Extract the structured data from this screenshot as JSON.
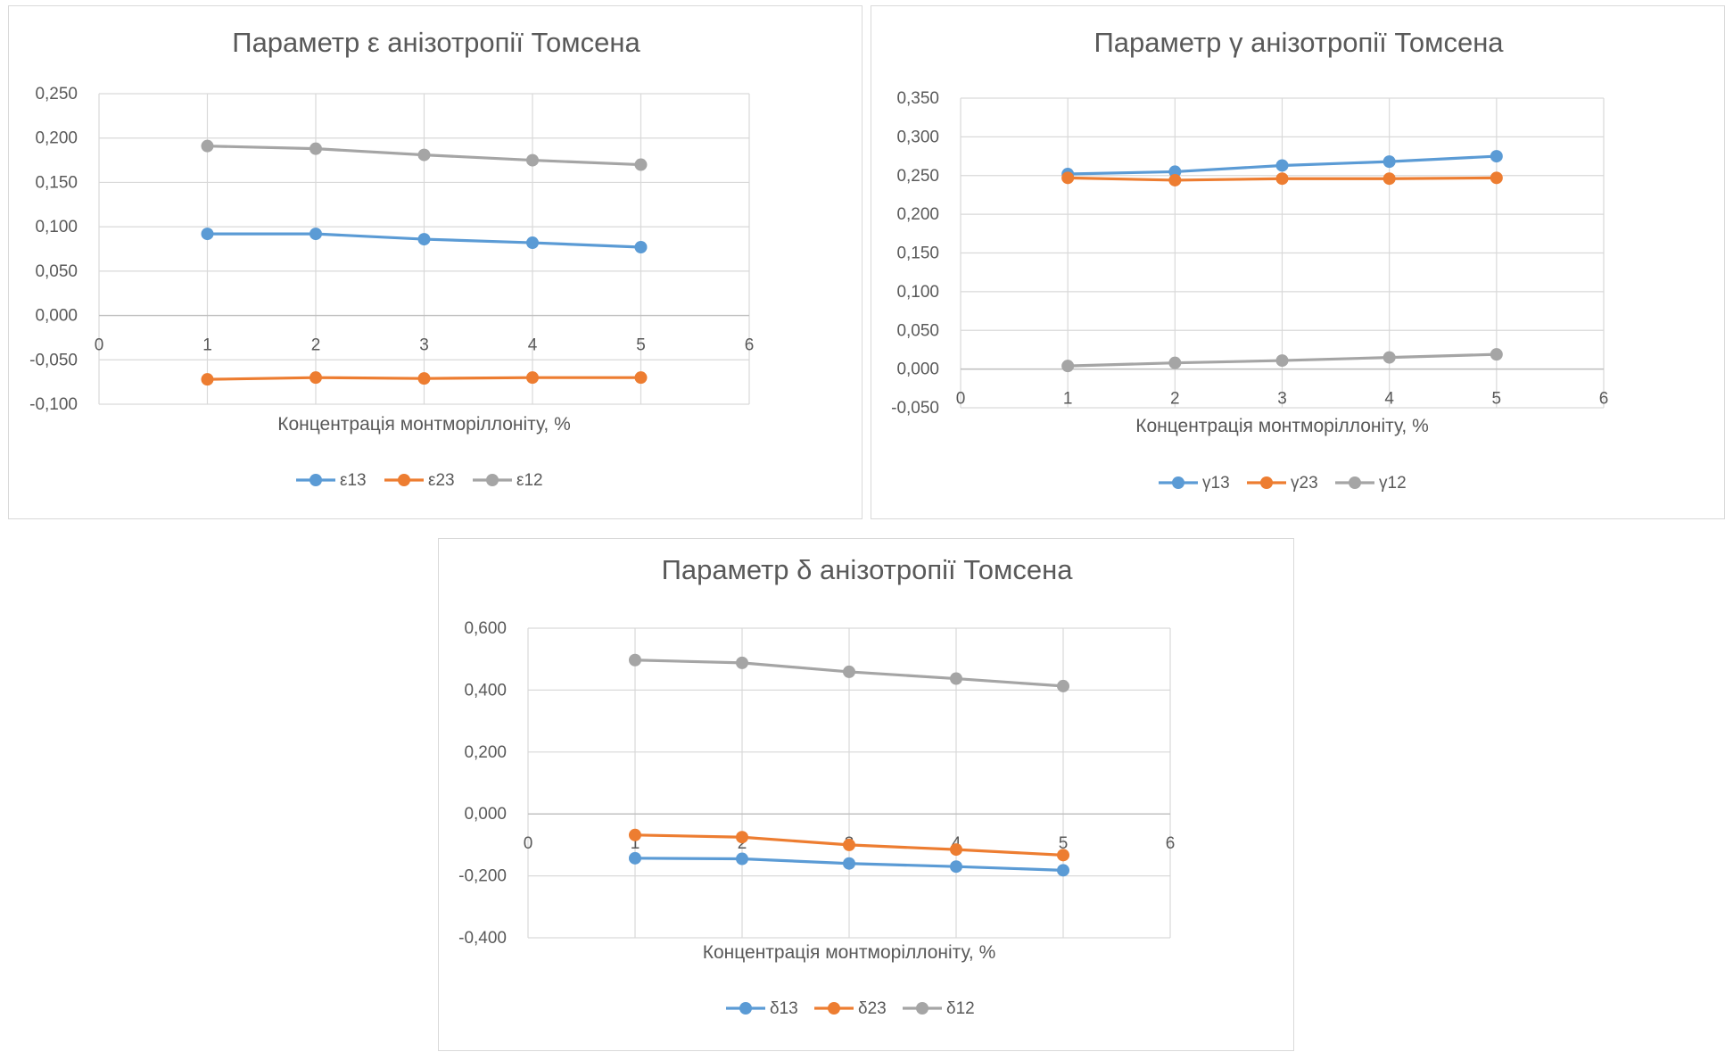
{
  "charts": [
    {
      "id": "eps",
      "chart_data": {
        "type": "scatter",
        "title": "Параметр ε анізотропії Томсена",
        "xlabel": "Концентрація монтморіллоніту, %",
        "ylabel": "",
        "x": [
          1,
          2,
          3,
          4,
          5
        ],
        "xlim": [
          0,
          6
        ],
        "xticks": [
          0,
          1,
          2,
          3,
          4,
          5,
          6
        ],
        "xtick_labels": [
          "0",
          "1",
          "2",
          "3",
          "4",
          "5",
          "6"
        ],
        "ylim": [
          -0.1,
          0.25
        ],
        "yticks": [
          -0.1,
          -0.05,
          0,
          0.05,
          0.1,
          0.15,
          0.2,
          0.25
        ],
        "ytick_labels": [
          "-0,100",
          "-0,050",
          "0,000",
          "0,050",
          "0,100",
          "0,150",
          "0,200",
          "0,250"
        ],
        "grid": true,
        "legend": "bottom",
        "series": [
          {
            "name": "ε13",
            "color": "#5b9bd5",
            "values": [
              0.092,
              0.092,
              0.086,
              0.082,
              0.077
            ]
          },
          {
            "name": "ε23",
            "color": "#ed7d31",
            "values": [
              -0.072,
              -0.07,
              -0.071,
              -0.07,
              -0.07
            ]
          },
          {
            "name": "ε12",
            "color": "#a5a5a5",
            "values": [
              0.191,
              0.188,
              0.181,
              0.175,
              0.17
            ]
          }
        ]
      }
    },
    {
      "id": "gamma",
      "chart_data": {
        "type": "scatter",
        "title": "Параметр γ анізотропії Томсена",
        "xlabel": "Концентрація монтморіллоніту, %",
        "ylabel": "",
        "x": [
          1,
          2,
          3,
          4,
          5
        ],
        "xlim": [
          0,
          6
        ],
        "xticks": [
          0,
          1,
          2,
          3,
          4,
          5,
          6
        ],
        "xtick_labels": [
          "0",
          "1",
          "2",
          "3",
          "4",
          "5",
          "6"
        ],
        "ylim": [
          -0.05,
          0.35
        ],
        "yticks": [
          -0.05,
          0,
          0.05,
          0.1,
          0.15,
          0.2,
          0.25,
          0.3,
          0.35
        ],
        "ytick_labels": [
          "-0,050",
          "0,000",
          "0,050",
          "0,100",
          "0,150",
          "0,200",
          "0,250",
          "0,300",
          "0,350"
        ],
        "grid": true,
        "legend": "bottom",
        "series": [
          {
            "name": "γ13",
            "color": "#5b9bd5",
            "values": [
              0.252,
              0.255,
              0.263,
              0.268,
              0.275
            ]
          },
          {
            "name": "γ23",
            "color": "#ed7d31",
            "values": [
              0.247,
              0.244,
              0.246,
              0.246,
              0.247
            ]
          },
          {
            "name": "γ12",
            "color": "#a5a5a5",
            "values": [
              0.004,
              0.008,
              0.011,
              0.015,
              0.019
            ]
          }
        ]
      }
    },
    {
      "id": "delta",
      "chart_data": {
        "type": "scatter",
        "title": "Параметр δ анізотропії Томсена",
        "xlabel": "Концентрація монтморіллоніту, %",
        "ylabel": "",
        "x": [
          1,
          2,
          3,
          4,
          5
        ],
        "xlim": [
          0,
          6
        ],
        "xticks": [
          0,
          1,
          2,
          3,
          4,
          5,
          6
        ],
        "xtick_labels": [
          "0",
          "1",
          "2",
          "3",
          "4",
          "5",
          "6"
        ],
        "ylim": [
          -0.4,
          0.6
        ],
        "yticks": [
          -0.4,
          -0.2,
          0,
          0.2,
          0.4,
          0.6
        ],
        "ytick_labels": [
          "-0,400",
          "-0,200",
          "0,000",
          "0,200",
          "0,400",
          "0,600"
        ],
        "grid": true,
        "legend": "bottom",
        "series": [
          {
            "name": "δ13",
            "color": "#5b9bd5",
            "values": [
              -0.143,
              -0.145,
              -0.16,
              -0.17,
              -0.182
            ]
          },
          {
            "name": "δ23",
            "color": "#ed7d31",
            "values": [
              -0.068,
              -0.075,
              -0.1,
              -0.115,
              -0.133
            ]
          },
          {
            "name": "δ12",
            "color": "#a5a5a5",
            "values": [
              0.497,
              0.488,
              0.459,
              0.437,
              0.413
            ]
          }
        ]
      }
    }
  ]
}
